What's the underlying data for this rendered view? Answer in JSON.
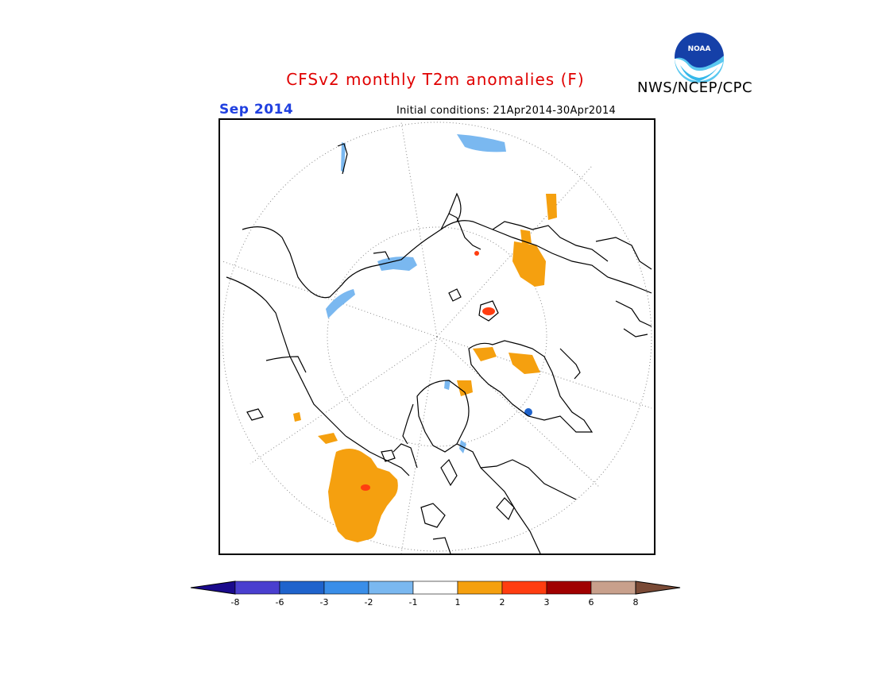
{
  "title": "CFSv2 monthly T2m anomalies (F)",
  "organization": "NWS/NCEP/CPC",
  "logo_text": "NOAA",
  "valid_month": "Sep 2014",
  "initial_conditions": "Initial conditions: 21Apr2014-30Apr2014",
  "map": {
    "projection": "north polar stereographic",
    "features": [
      "coastlines",
      "dotted graticule"
    ]
  },
  "legend": {
    "bins": [
      {
        "range": "< -8",
        "color": "#1a0a8c"
      },
      {
        "range": "-8 to -6",
        "color": "#4a3fcf"
      },
      {
        "range": "-6 to -3",
        "color": "#1f63cc"
      },
      {
        "range": "-3 to -2",
        "color": "#3a8ee8"
      },
      {
        "range": "-2 to -1",
        "color": "#7ab8f0"
      },
      {
        "range": "-1 to 1",
        "color": "#ffffff"
      },
      {
        "range": "1 to 2",
        "color": "#f5a00f"
      },
      {
        "range": "2 to 3",
        "color": "#ff3d10"
      },
      {
        "range": "3 to 6",
        "color": "#a00000"
      },
      {
        "range": "6 to 8",
        "color": "#c8a08c"
      },
      {
        "range": "> 8",
        "color": "#7a4a36"
      }
    ],
    "tick_labels": [
      "-8",
      "-6",
      "-3",
      "-2",
      "-1",
      "1",
      "2",
      "3",
      "6",
      "8"
    ]
  }
}
